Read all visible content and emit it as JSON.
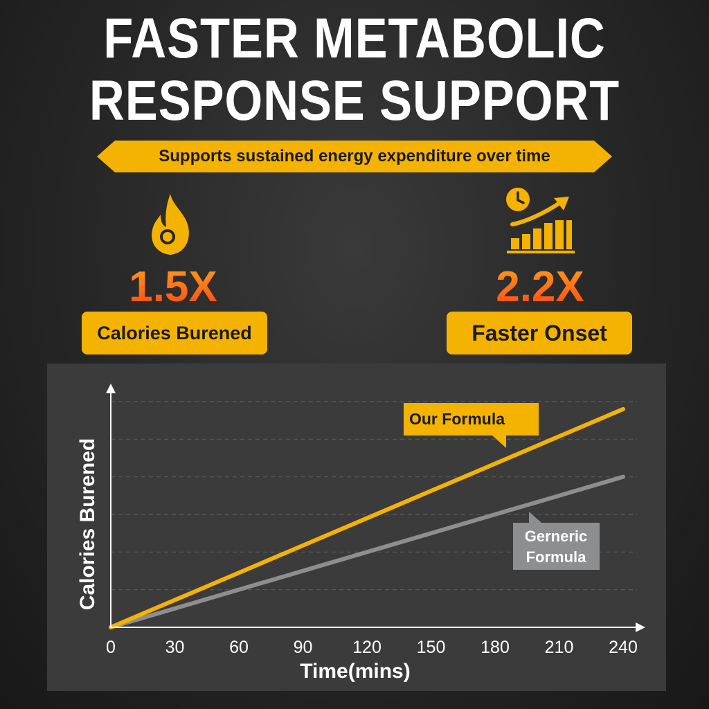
{
  "header": {
    "title_line1": "FASTER METABOLIC",
    "title_line2": "RESPONSE SUPPORT",
    "banner": "Supports sustained energy expenditure over time"
  },
  "stats": [
    {
      "icon": "flame-icon",
      "value": "1.5X",
      "label": "Calories Burened"
    },
    {
      "icon": "clock-growth-chart-icon",
      "value": "2.2X",
      "label": "Faster Onset"
    }
  ],
  "colors": {
    "accent": "#f5b301",
    "stat_gradient_top": "#ff9a1a",
    "stat_gradient_bottom": "#ff4a12",
    "our_formula": "#f5b301",
    "generic_formula": "#8c8e90",
    "panel": "#3b3b3b"
  },
  "chart_data": {
    "type": "line",
    "xlabel": "Time(mins)",
    "ylabel": "Calories Burened",
    "x_ticks": [
      0,
      30,
      60,
      90,
      120,
      150,
      180,
      210,
      240
    ],
    "xlim": [
      0,
      240
    ],
    "ylim": [
      0,
      6
    ],
    "y_tick_labels_shown": false,
    "grid": "horizontal dashed",
    "series": [
      {
        "name": "Our Formula",
        "x": [
          0,
          240
        ],
        "y": [
          0,
          5.8
        ]
      },
      {
        "name": "Gerneric Formula",
        "name_lines": [
          "Gerneric",
          "Formula"
        ],
        "x": [
          0,
          240
        ],
        "y": [
          0,
          4.0
        ]
      }
    ]
  }
}
